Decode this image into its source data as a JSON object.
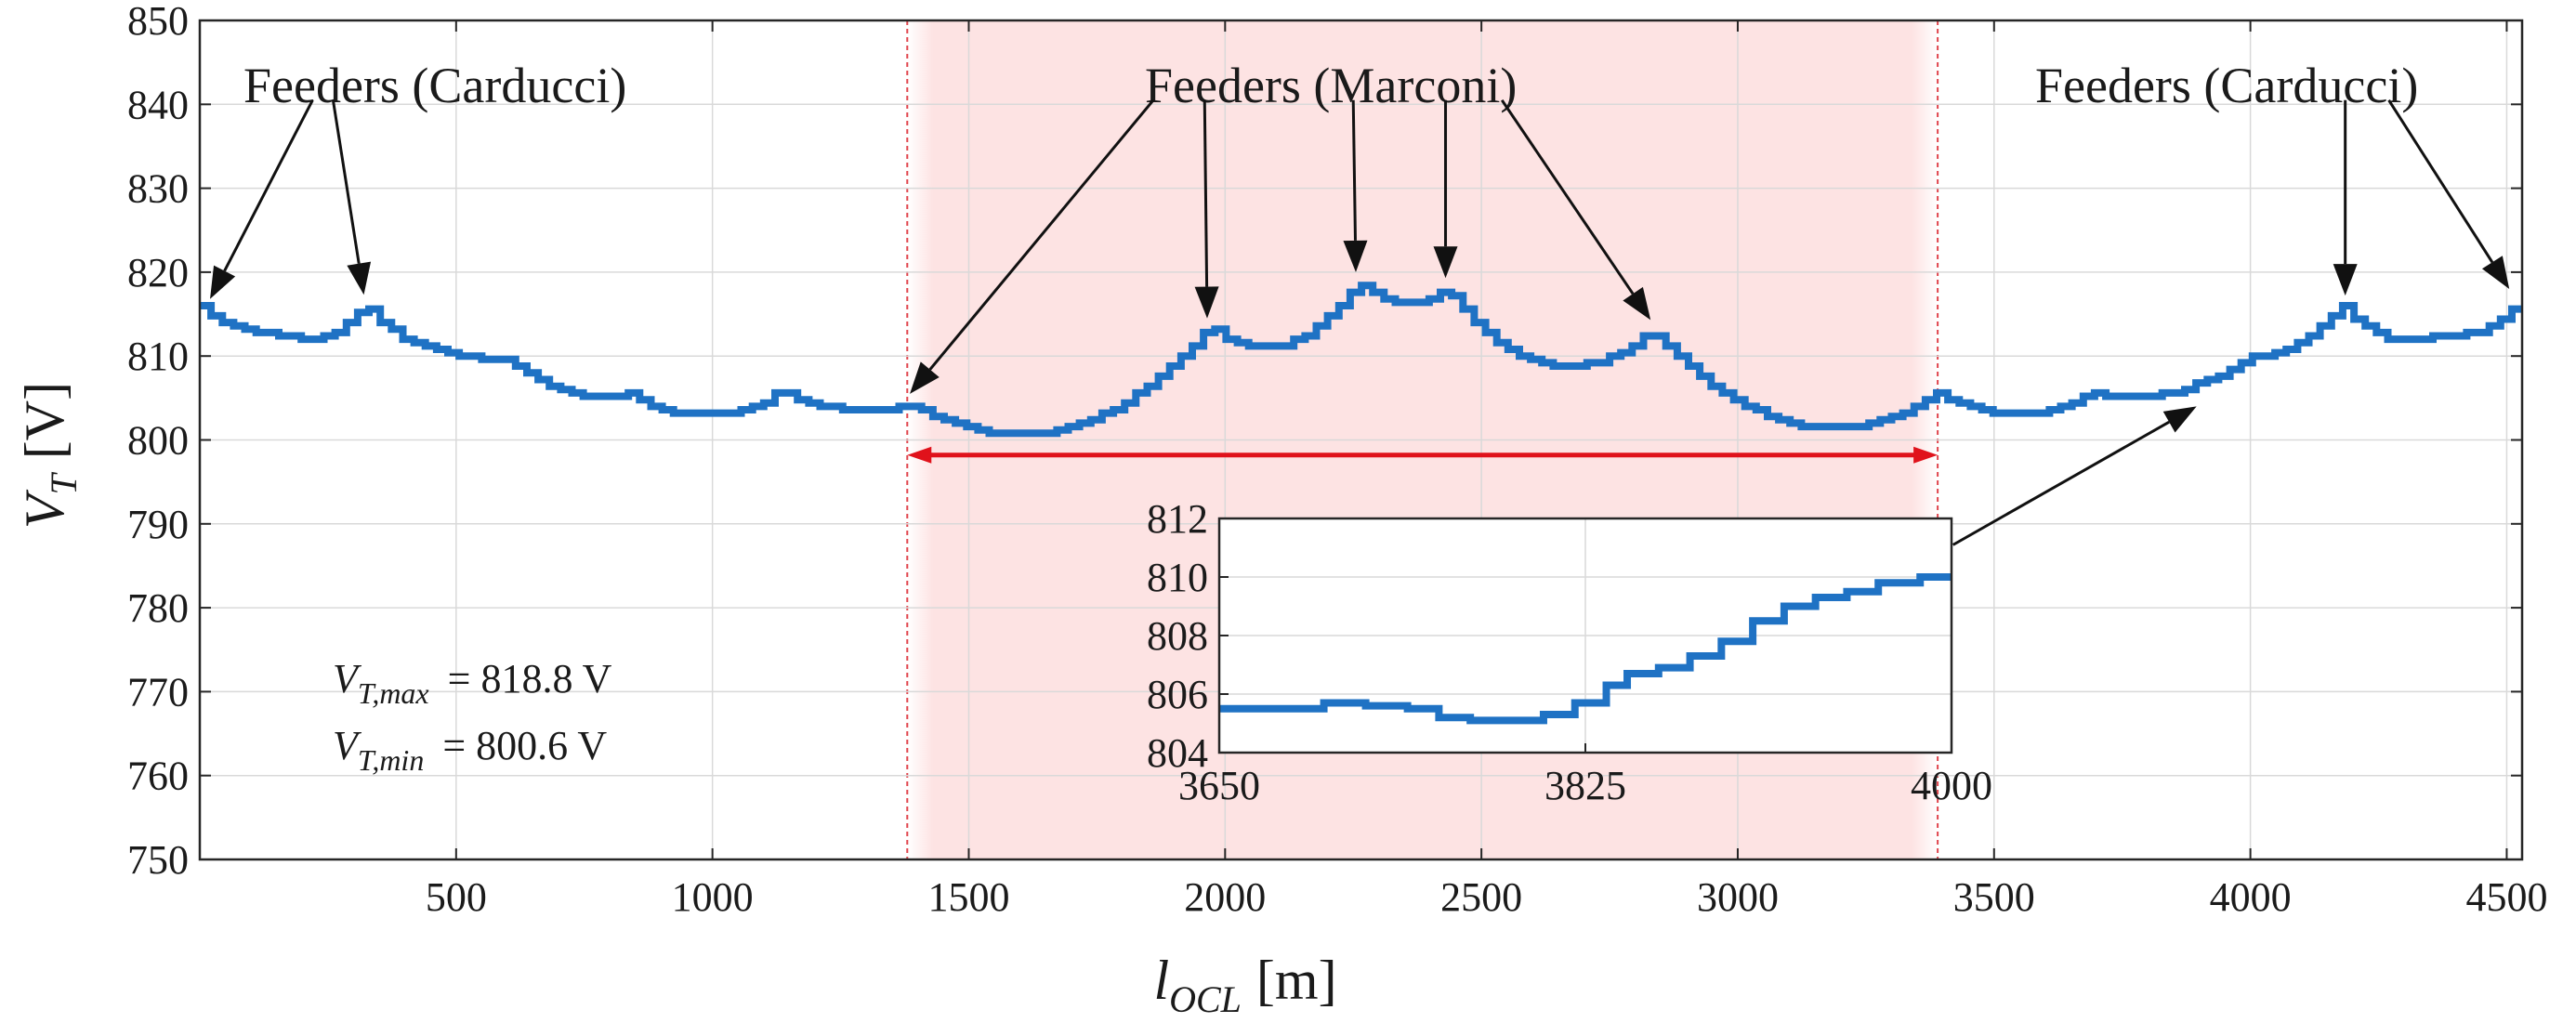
{
  "chart_data": {
    "type": "line",
    "title": "",
    "xlabel": "l_OCL [m]",
    "xlabel_parts": {
      "var": "l",
      "sub": "OCL",
      "unit": "[m]"
    },
    "ylabel": "V_T [V]",
    "ylabel_parts": {
      "var": "V",
      "sub": "T",
      "unit": "[V]"
    },
    "xlim": [
      0,
      4530
    ],
    "ylim": [
      750,
      850
    ],
    "xticks": [
      500,
      1000,
      1500,
      2000,
      2500,
      3000,
      3500,
      4000,
      4500
    ],
    "yticks": [
      750,
      760,
      770,
      780,
      790,
      800,
      810,
      820,
      830,
      840,
      850
    ],
    "grid": true,
    "highlight_region": {
      "x0": 1380,
      "x1": 3390,
      "color": "#fde3e3",
      "edge_color": "#e0454d"
    },
    "span_arrow": {
      "x0": 1380,
      "x1": 3390,
      "y": 798.2,
      "color": "#e0121b"
    },
    "series": [
      {
        "name": "V_T",
        "color": "#1f72c4",
        "peaks": [
          [
            0,
            815.8
          ],
          [
            150,
            812.6
          ],
          [
            215,
            812.0
          ],
          [
            320,
            816.2
          ],
          [
            470,
            810.8
          ],
          [
            600,
            809.5
          ],
          [
            780,
            805.0
          ],
          [
            840,
            805.5
          ],
          [
            950,
            803.2
          ],
          [
            1010,
            803.0
          ],
          [
            1130,
            805.8
          ],
          [
            1300,
            803.5
          ],
          [
            1380,
            804.3
          ],
          [
            1600,
            800.6
          ],
          [
            1970,
            813.5
          ],
          [
            2070,
            811.0
          ],
          [
            2260,
            818.8
          ],
          [
            2360,
            816.2
          ],
          [
            2430,
            818.2
          ],
          [
            2660,
            808.7
          ],
          [
            2830,
            813.0
          ],
          [
            3180,
            801.5
          ],
          [
            3390,
            805.6
          ],
          [
            3540,
            803.0
          ],
          [
            3690,
            805.7
          ],
          [
            3760,
            805.1
          ],
          [
            4000,
            810.0
          ],
          [
            4180,
            816.0
          ],
          [
            4290,
            812.0
          ],
          [
            4420,
            812.8
          ],
          [
            4530,
            816.8
          ]
        ]
      }
    ],
    "annotations": {
      "feeders_left": "Feeders (Carducci)",
      "feeders_mid": "Feeders (Marconi)",
      "feeders_right": "Feeders (Carducci)"
    },
    "stats": {
      "vmax_label": "V",
      "vmax_sub": "T,max",
      "vmax_value": "= 818.8 V",
      "vmin_label": "V",
      "vmin_sub": "T,min",
      "vmin_value": "= 800.6 V"
    },
    "inset": {
      "type": "line",
      "xlim": [
        3650,
        4000
      ],
      "ylim": [
        804,
        812
      ],
      "xticks": [
        3650,
        3825,
        4000
      ],
      "yticks": [
        804,
        806,
        808,
        810,
        812
      ],
      "steps": [
        [
          3650,
          805.5
        ],
        [
          3670,
          805.5
        ],
        [
          3700,
          805.7
        ],
        [
          3720,
          805.6
        ],
        [
          3740,
          805.5
        ],
        [
          3755,
          805.2
        ],
        [
          3770,
          805.1
        ],
        [
          3790,
          805.1
        ],
        [
          3805,
          805.3
        ],
        [
          3820,
          805.7
        ],
        [
          3835,
          806.3
        ],
        [
          3845,
          806.7
        ],
        [
          3860,
          806.9
        ],
        [
          3875,
          807.3
        ],
        [
          3890,
          807.8
        ],
        [
          3905,
          808.5
        ],
        [
          3920,
          809.0
        ],
        [
          3935,
          809.3
        ],
        [
          3950,
          809.5
        ],
        [
          3965,
          809.8
        ],
        [
          3985,
          810.0
        ],
        [
          4000,
          810.0
        ]
      ]
    }
  }
}
